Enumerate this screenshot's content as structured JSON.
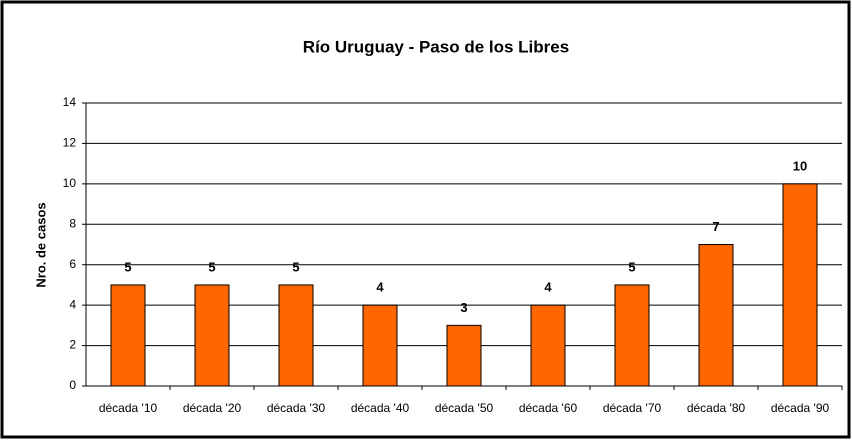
{
  "chart_data": {
    "type": "bar",
    "title": "Río Uruguay - Paso de los Libres",
    "y_label": "Nro. de casos",
    "categories": [
      "década '10",
      "década '20",
      "década '30",
      "década '40",
      "década '50",
      "década '60",
      "década '70",
      "década '80",
      "década '90"
    ],
    "values": [
      5,
      5,
      5,
      4,
      3,
      4,
      5,
      7,
      10
    ],
    "color": "#ff6600",
    "ylim": [
      0,
      14
    ],
    "yticks": [
      0,
      2,
      4,
      6,
      8,
      10,
      12,
      14
    ],
    "grid": true,
    "data_labels": true
  }
}
